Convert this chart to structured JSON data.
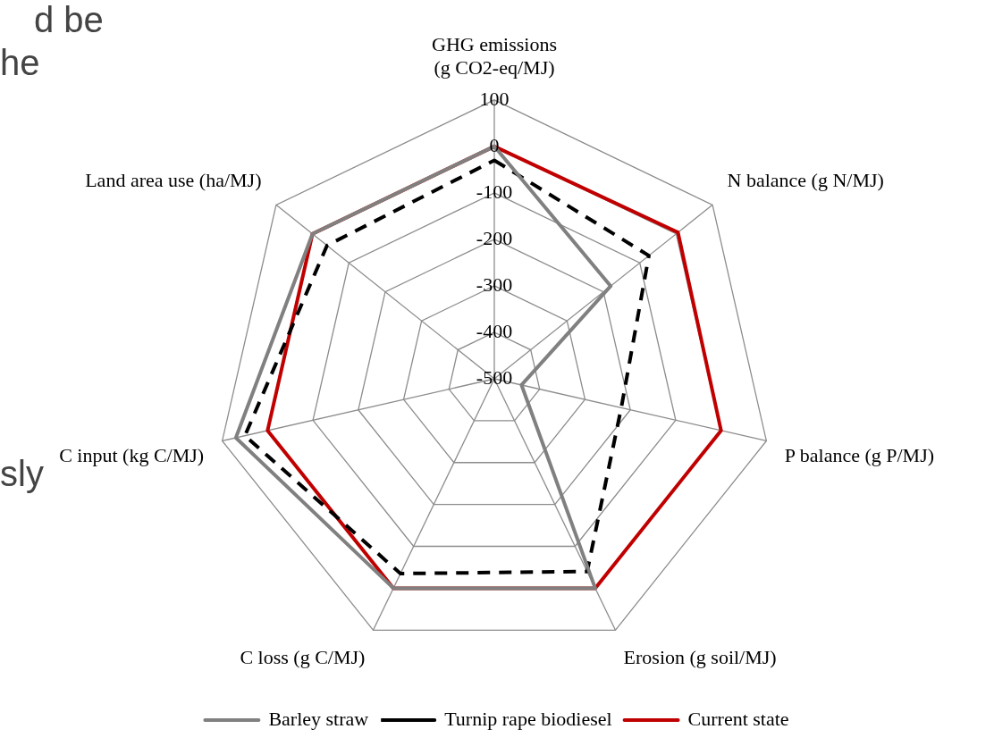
{
  "chart_data": {
    "type": "radar",
    "categories": [
      "GHG emissions (g CO2-eq/MJ)",
      "N balance (g N/MJ)",
      "P balance (g P/MJ)",
      "Erosion (g soil/MJ)",
      "C loss (g C/MJ)",
      "C input (kg C/MJ)",
      "Land area use (ha/MJ)"
    ],
    "series": [
      {
        "name": "Barley straw",
        "color": "#808080",
        "line_style": "solid",
        "values": [
          0,
          -180,
          -440,
          0,
          0,
          70,
          0
        ]
      },
      {
        "name": "Turnip rape biodiesel",
        "color": "#000000",
        "line_style": "dashed",
        "values": [
          -30,
          -75,
          -220,
          -40,
          -35,
          50,
          -40
        ]
      },
      {
        "name": "Current state",
        "color": "#c00000",
        "line_style": "solid",
        "values": [
          0,
          5,
          0,
          0,
          0,
          0,
          0
        ]
      }
    ],
    "ylim": [
      -500,
      100
    ],
    "yticks": [
      -500,
      -400,
      -300,
      -200,
      -100,
      0,
      100
    ],
    "grid": true,
    "legend": "bottom",
    "marker": "none",
    "annotations": [
      "d be",
      "he",
      "sly"
    ]
  }
}
